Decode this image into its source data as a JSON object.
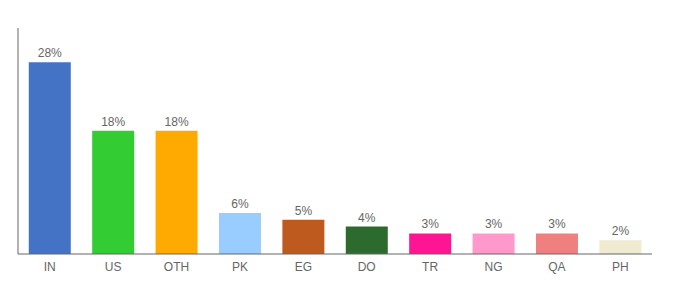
{
  "chart_data": {
    "type": "bar",
    "categories": [
      "IN",
      "US",
      "OTH",
      "PK",
      "EG",
      "DO",
      "TR",
      "NG",
      "QA",
      "PH"
    ],
    "values": [
      28,
      18,
      18,
      6,
      5,
      4,
      3,
      3,
      3,
      2
    ],
    "value_labels": [
      "28%",
      "18%",
      "18%",
      "6%",
      "5%",
      "4%",
      "3%",
      "3%",
      "3%",
      "2%"
    ],
    "colors": [
      "#4472c4",
      "#33cc33",
      "#ffaa00",
      "#99ccff",
      "#bf5a1e",
      "#2d6a2d",
      "#ff1493",
      "#ff99cc",
      "#f08080",
      "#f0ead0"
    ],
    "ylim": [
      0,
      33
    ],
    "yticks": [],
    "grid": false,
    "tick_labels": "x"
  }
}
